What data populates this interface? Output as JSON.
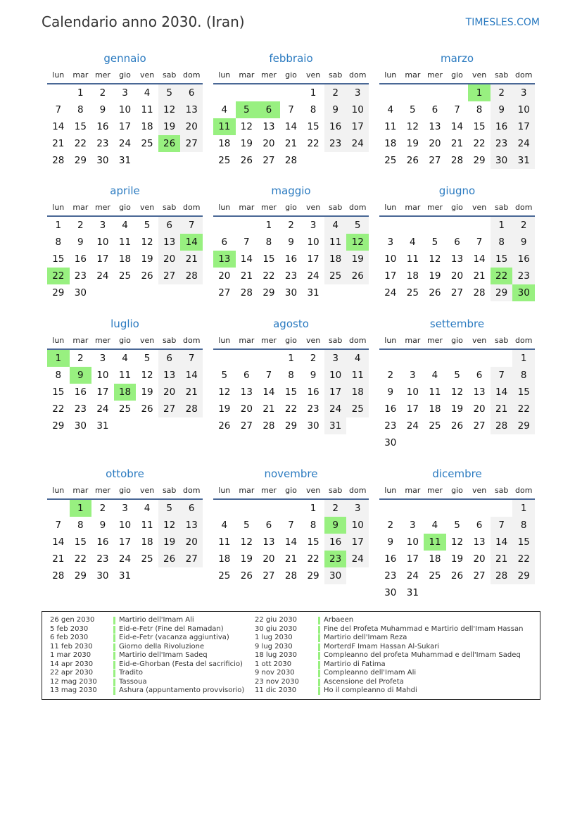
{
  "header": {
    "title": "Calendario anno 2030. (Iran)",
    "brand": "TIMESLES.COM"
  },
  "year": 2030,
  "weekdays": [
    "lun",
    "mar",
    "mer",
    "gio",
    "ven",
    "sab",
    "dom"
  ],
  "colors": {
    "accent": "#2a7ac0",
    "holiday": "#98f080",
    "weekend": "#f2f2f2",
    "rule": "#4a6896"
  },
  "months": [
    {
      "name": "gennaio",
      "holidays": [
        26
      ]
    },
    {
      "name": "febbraio",
      "holidays": [
        5,
        6,
        11
      ]
    },
    {
      "name": "marzo",
      "holidays": [
        1
      ]
    },
    {
      "name": "aprile",
      "holidays": [
        14,
        22
      ]
    },
    {
      "name": "maggio",
      "holidays": [
        12,
        13
      ]
    },
    {
      "name": "giugno",
      "holidays": [
        22,
        30
      ]
    },
    {
      "name": "luglio",
      "holidays": [
        1,
        9,
        18
      ]
    },
    {
      "name": "agosto",
      "holidays": []
    },
    {
      "name": "settembre",
      "holidays": []
    },
    {
      "name": "ottobre",
      "holidays": [
        1
      ]
    },
    {
      "name": "novembre",
      "holidays": [
        9,
        23
      ]
    },
    {
      "name": "dicembre",
      "holidays": [
        11
      ]
    }
  ],
  "legend": [
    {
      "date": "26 gen 2030",
      "name": "Martirio dell'Imam Ali"
    },
    {
      "date": "5 feb 2030",
      "name": "Eid-e-Fetr (Fine del Ramadan)"
    },
    {
      "date": "6 feb 2030",
      "name": "Eid-e-Fetr (vacanza aggiuntiva)"
    },
    {
      "date": "11 feb 2030",
      "name": "Giorno della Rivoluzione"
    },
    {
      "date": "1 mar 2030",
      "name": "Martirio dell'Imam Sadeq"
    },
    {
      "date": "14 apr 2030",
      "name": "Eid-e-Ghorban (Festa del sacrificio)"
    },
    {
      "date": "22 apr 2030",
      "name": "Tradito"
    },
    {
      "date": "12 mag 2030",
      "name": "Tassoua"
    },
    {
      "date": "13 mag 2030",
      "name": "Ashura (appuntamento provvisorio)"
    },
    {
      "date": "22 giu 2030",
      "name": "Arbaeen"
    },
    {
      "date": "30 giu 2030",
      "name": "Fine del Profeta Muhammad e Martirio dell'Imam Hassan"
    },
    {
      "date": "1 lug 2030",
      "name": "Martirio dell'Imam Reza"
    },
    {
      "date": "9 lug 2030",
      "name": "MorterdF Imam Hassan Al-Sukari"
    },
    {
      "date": "18 lug 2030",
      "name": "Compleanno del profeta Muhammad e dell'Imam Sadeq"
    },
    {
      "date": "1 ott 2030",
      "name": "Martirio di Fatima"
    },
    {
      "date": "9 nov 2030",
      "name": "Compleanno dell'Imam Ali"
    },
    {
      "date": "23 nov 2030",
      "name": "Ascensione del Profeta"
    },
    {
      "date": "11 dic 2030",
      "name": "Ho il compleanno di Mahdi"
    }
  ]
}
